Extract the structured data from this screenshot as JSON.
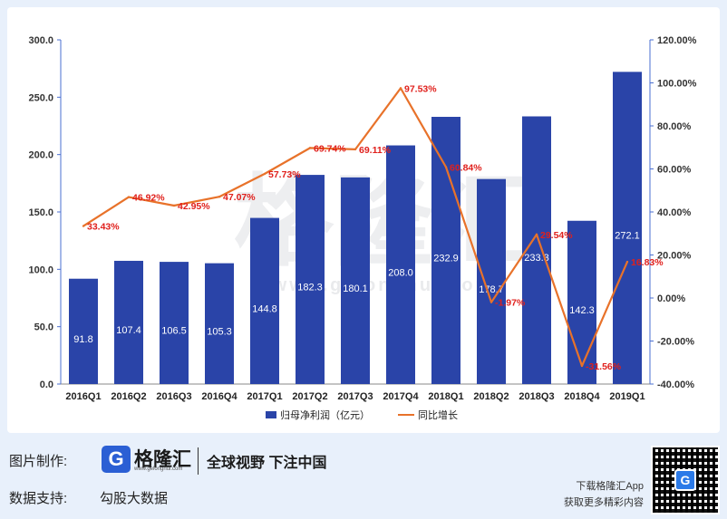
{
  "chart_data": {
    "type": "bar+line",
    "categories": [
      "2016Q1",
      "2016Q2",
      "2016Q3",
      "2016Q4",
      "2017Q1",
      "2017Q2",
      "2017Q3",
      "2017Q4",
      "2018Q1",
      "2018Q2",
      "2018Q3",
      "2018Q4",
      "2019Q1"
    ],
    "bar_series": {
      "name": "归母净利润（亿元）",
      "values": [
        91.8,
        107.4,
        106.5,
        105.3,
        144.8,
        182.3,
        180.1,
        208.0,
        232.9,
        178.7,
        233.3,
        142.3,
        272.1
      ],
      "labels": [
        "91.8",
        "107.4",
        "106.5",
        "105.3",
        "144.8",
        "182.3",
        "180.1",
        "208.0",
        "232.9",
        "178.7",
        "233.3",
        "142.3",
        "272.1"
      ],
      "color": "#2a44a8"
    },
    "line_series": {
      "name": "同比增长",
      "values": [
        33.43,
        46.92,
        42.95,
        47.07,
        57.73,
        69.74,
        69.11,
        97.53,
        60.84,
        -1.97,
        29.54,
        -31.56,
        16.83
      ],
      "labels": [
        "33.43%",
        "46.92%",
        "42.95%",
        "47.07%",
        "57.73%",
        "69.74%",
        "69.11%",
        "97.53%",
        "60.84%",
        "-1.97%",
        "29.54%",
        "-31.56%",
        "16.83%"
      ],
      "color": "#e8722a",
      "label_color": "#e0201c"
    },
    "y_left": {
      "ylim": [
        0,
        300
      ],
      "ticks": [
        "0.0",
        "50.0",
        "100.0",
        "150.0",
        "200.0",
        "250.0",
        "300.0"
      ],
      "tick_values": [
        0,
        50,
        100,
        150,
        200,
        250,
        300
      ]
    },
    "y_right": {
      "ylim": [
        -40,
        120
      ],
      "ticks": [
        "-40.00%",
        "-20.00%",
        "0.00%",
        "20.00%",
        "40.00%",
        "60.00%",
        "80.00%",
        "100.00%",
        "120.00%"
      ],
      "tick_values": [
        -40,
        -20,
        0,
        20,
        40,
        60,
        80,
        100,
        120
      ]
    },
    "legend_position": "bottom",
    "watermark": "格隆汇",
    "watermark_domain": "www.gelonghui.com"
  },
  "footer": {
    "made_by_label": "图片制作:",
    "logo_glyph": "G",
    "logo_name": "格隆汇",
    "logo_domain": "www.gelonghui.com",
    "slogan": "全球视野 下注中国",
    "support_label": "数据支持:",
    "support_value": "勾股大数据",
    "app_line1": "下载格隆汇App",
    "app_line2": "获取更多精彩内容",
    "qr_glyph": "G"
  }
}
